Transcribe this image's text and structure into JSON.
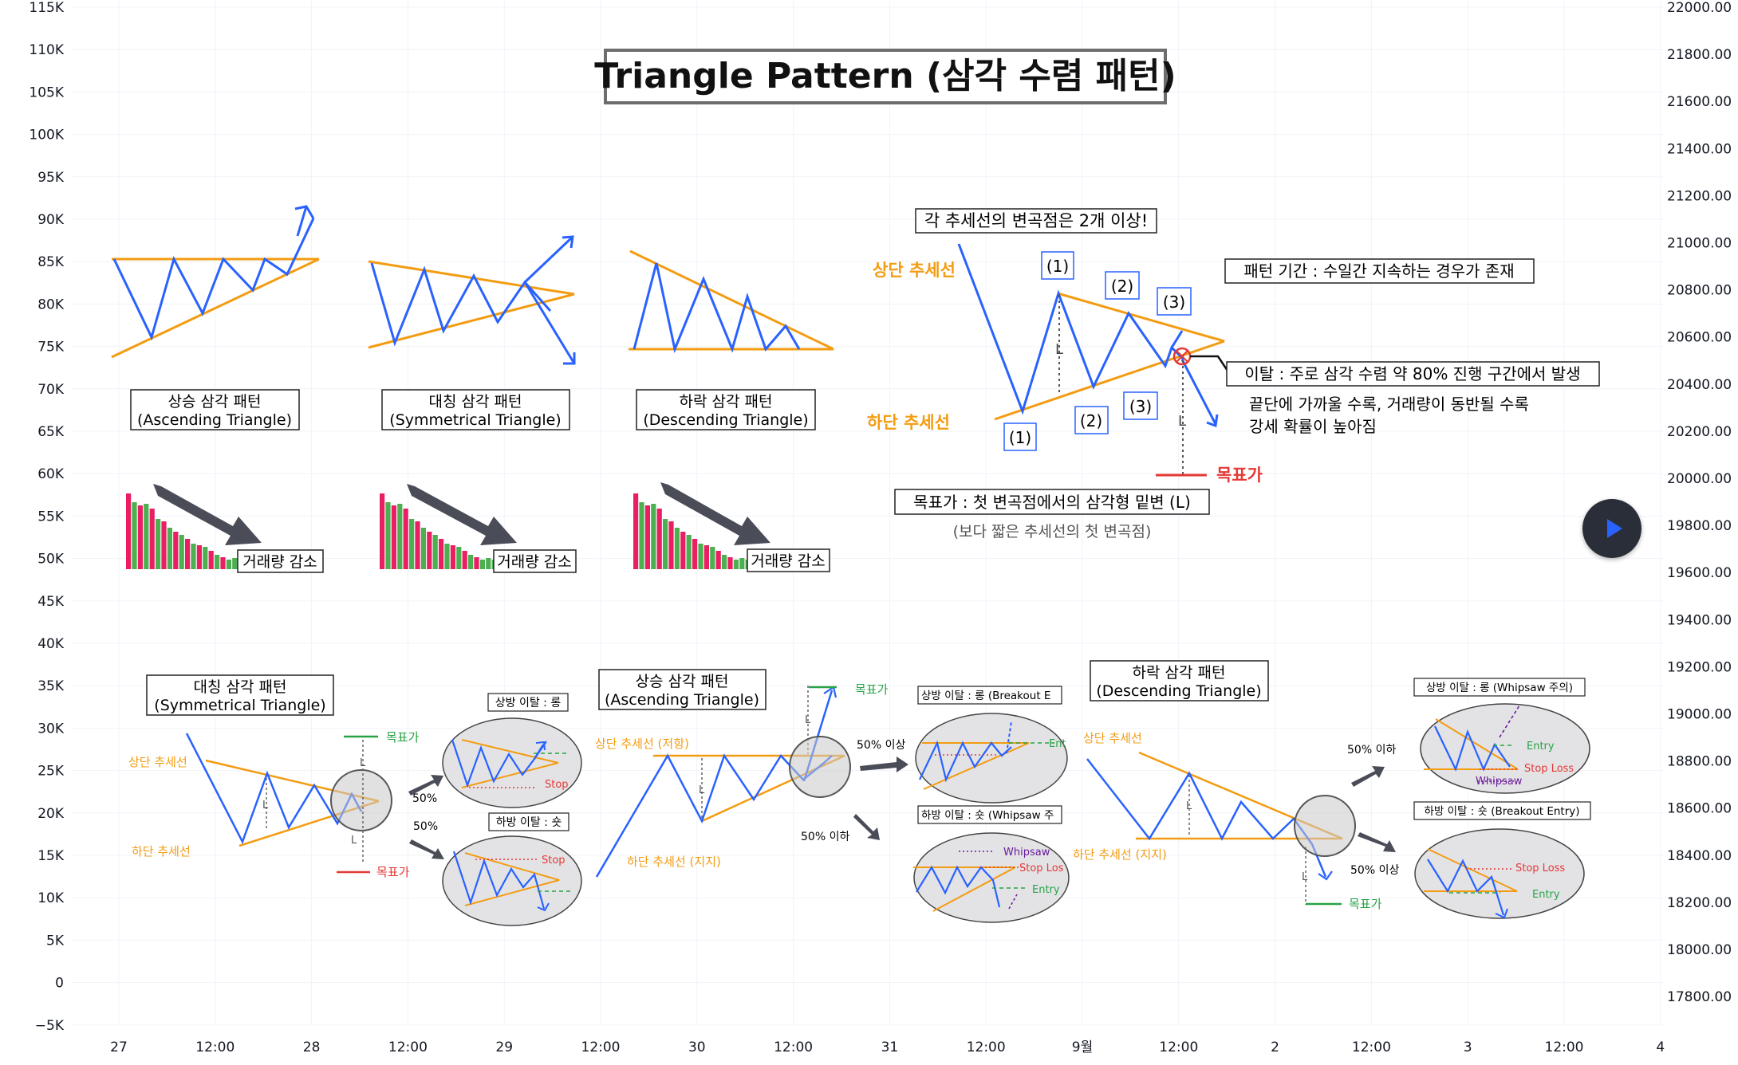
{
  "title": "Triangle Pattern (삼각 수렴 패턴)",
  "left_axis": [
    "115K",
    "110K",
    "105K",
    "100K",
    "95K",
    "90K",
    "85K",
    "80K",
    "75K",
    "70K",
    "65K",
    "60K",
    "55K",
    "50K",
    "45K",
    "40K",
    "35K",
    "30K",
    "25K",
    "20K",
    "15K",
    "10K",
    "5K",
    "0",
    "−5K"
  ],
  "right_axis": [
    "22000.00",
    "21800.00",
    "21600.00",
    "21400.00",
    "21200.00",
    "21000.00",
    "20800.00",
    "20600.00",
    "20400.00",
    "20200.00",
    "20000.00",
    "19800.00",
    "19600.00",
    "19400.00",
    "19200.00",
    "19000.00",
    "18800.00",
    "18600.00",
    "18400.00",
    "18200.00",
    "18000.00",
    "17800.00"
  ],
  "x_axis": [
    "27",
    "12:00",
    "28",
    "12:00",
    "29",
    "12:00",
    "30",
    "12:00",
    "31",
    "12:00",
    "9월",
    "12:00",
    "2",
    "12:00",
    "3",
    "12:00",
    "4"
  ],
  "top_patterns": {
    "asc_ko": "상승 삼각 패턴",
    "asc_en": "(Ascending Triangle)",
    "sym_ko": "대칭 삼각 패턴",
    "sym_en": "(Symmetrical Triangle)",
    "desc_ko": "하락 삼각 패턴",
    "desc_en": "(Descending Triangle)",
    "volume_label": "거래량 감소"
  },
  "detail": {
    "pivot_note": "각 추세선의 변곡점은 2개 이상!",
    "upper_line": "상단 추세선",
    "lower_line": "하단 추세선",
    "n1": "(1)",
    "n2": "(2)",
    "n3": "(3)",
    "duration_note": "패턴 기간 : 수일간 지속하는 경우가 존재",
    "breakout_note": "이탈 : 주로 삼각 수렴 약 80% 진행 구간에서 발생",
    "breakout_sub1": "끝단에 가까울 수록, 거래량이 동반될 수록",
    "breakout_sub2": "강세 확률이 높아짐",
    "L": "L",
    "target": "목표가",
    "target_note": "목표가 : 첫 변곡점에서의 삼각형 밑변 (L)",
    "target_sub": "(보다 짧은 추세선의 첫 변곡점)"
  },
  "bottom": {
    "sym_ko": "대칭 삼각 패턴",
    "sym_en": "(Symmetrical Triangle)",
    "asc_ko": "상승 삼각 패턴",
    "asc_en": "(Ascending Triangle)",
    "desc_ko": "하락 삼각 패턴",
    "desc_en": "(Descending Triangle)",
    "upper": "상단 추세선",
    "lower": "하단 추세선",
    "upper_resist": "상단 추세선 (저항)",
    "lower_support": "하단 추세선 (지지)",
    "target": "목표가",
    "p50": "50%",
    "p50_up": "50% 이상",
    "p50_down": "50% 이하",
    "up_long": "상방 이탈 : 롱",
    "down_short": "하방 이탈 : 숏",
    "up_long_breakout": "상방 이탈 : 롱 (Breakout E",
    "down_short_whipsaw": "하방 이탈 : 숏 (Whipsaw 주",
    "up_long_whipsaw": "상방 이탈 : 롱 (Whipsaw 주의)",
    "down_short_breakout": "하방 이탈 : 숏 (Breakout Entry)",
    "stop": "Stop",
    "stop_loss": "Stop Loss",
    "stop_los": "Stop Los",
    "entry": "Entry",
    "ent": "Ent",
    "whipsaw": "Whipsaw",
    "L": "L"
  },
  "colors": {
    "trend": "#f39c12",
    "price": "#2962ff",
    "target": "#e53935",
    "target_green": "#27a345",
    "vol_red": "#e91e63",
    "vol_green": "#4caf50",
    "arrow": "#4a4d57"
  }
}
